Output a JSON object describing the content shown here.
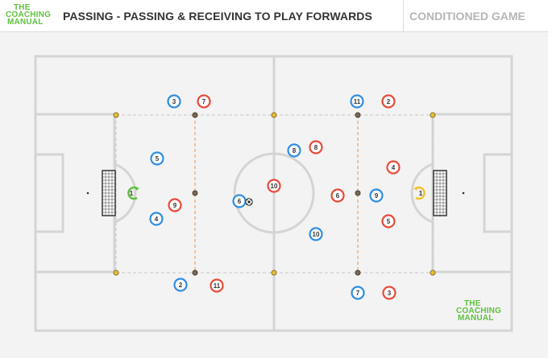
{
  "header": {
    "title": "PASSING - PASSING & RECEIVING TO PLAY FORWARDS",
    "right_label": "CONDITIONED GAME"
  },
  "logo": {
    "line1": "THE",
    "line2": "COACHING",
    "line3": "MANUAL"
  },
  "colors": {
    "blue_team": "#2f8ee0",
    "red_team": "#e84a3a",
    "green_keeper": "#5fc13e",
    "yellow_keeper": "#f2c230",
    "cone": "#7a6a55",
    "pitch_lines": "#d4d4d4",
    "logo": "#5fc13e"
  },
  "players": {
    "blue": [
      "3",
      "5",
      "4",
      "2",
      "6",
      "8",
      "10",
      "11",
      "9",
      "7"
    ],
    "red": [
      "7",
      "9",
      "11",
      "10",
      "8",
      "6",
      "2",
      "4",
      "5",
      "3"
    ],
    "keepers": [
      "1",
      "1"
    ]
  },
  "icons": [
    "soccer-ball-icon",
    "cone-marker-icon",
    "goal-net-icon"
  ]
}
